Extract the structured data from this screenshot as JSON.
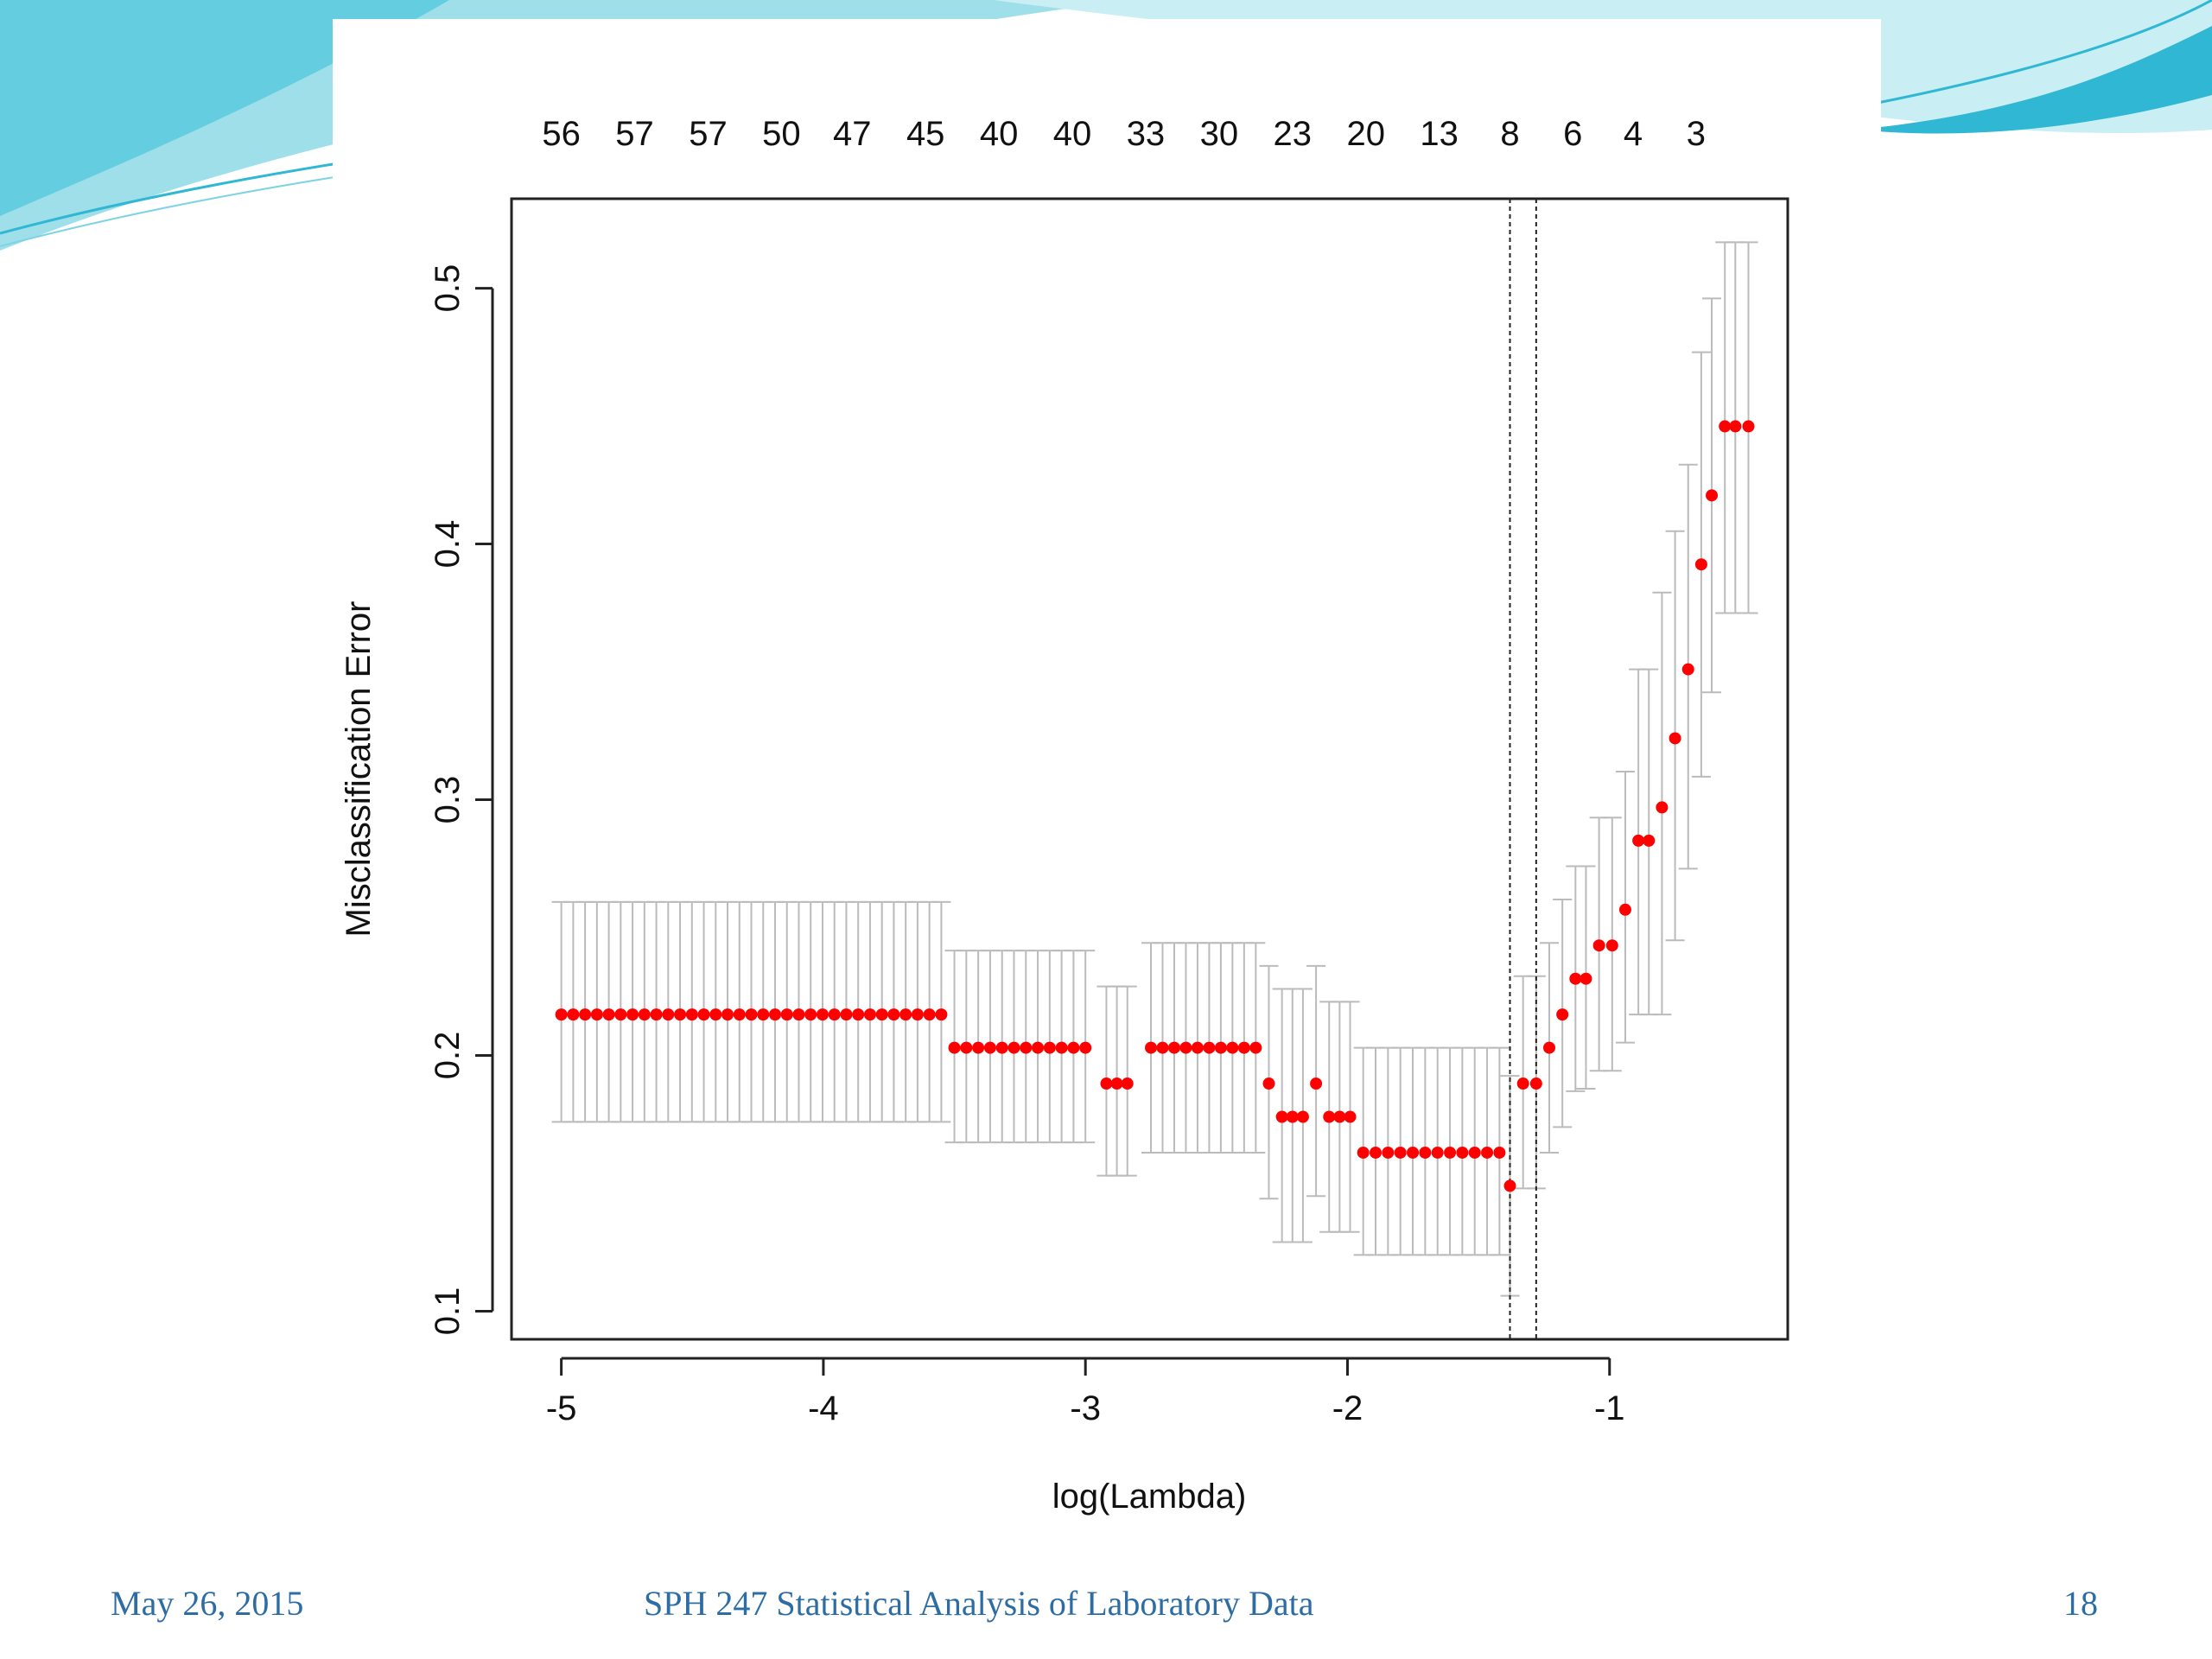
{
  "slide": {
    "footer_date": "May 26, 2015",
    "footer_title": "SPH 247 Statistical Analysis of Laboratory Data",
    "page_number": "18",
    "theme_colors": {
      "wave_light": "#aee6ee",
      "wave_mid": "#7fd3e4",
      "wave_dark": "#2fb7d4",
      "footer_text": "#2e6da4"
    }
  },
  "chart_data": {
    "type": "scatter",
    "title": "",
    "xlabel": "log(Lambda)",
    "ylabel": "Misclassification Error",
    "xlim": [
      -5.19,
      -0.32
    ],
    "ylim": [
      0.089,
      0.535
    ],
    "x_ticks": [
      -5,
      -4,
      -3,
      -2,
      -1
    ],
    "x_tick_labels": [
      "-5",
      "-4",
      "-3",
      "-2",
      "-1"
    ],
    "y_ticks": [
      0.1,
      0.2,
      0.3,
      0.4,
      0.5
    ],
    "y_tick_labels": [
      "0.1",
      "0.2",
      "0.3",
      "0.4",
      "0.5"
    ],
    "top_axis_labels": [
      {
        "x": -5.0,
        "label": "56"
      },
      {
        "x": -4.72,
        "label": "57"
      },
      {
        "x": -4.44,
        "label": "57"
      },
      {
        "x": -4.16,
        "label": "50"
      },
      {
        "x": -3.89,
        "label": "47"
      },
      {
        "x": -3.61,
        "label": "45"
      },
      {
        "x": -3.33,
        "label": "40"
      },
      {
        "x": -3.05,
        "label": "40"
      },
      {
        "x": -2.77,
        "label": "33"
      },
      {
        "x": -2.49,
        "label": "30"
      },
      {
        "x": -2.21,
        "label": "23"
      },
      {
        "x": -1.93,
        "label": "20"
      },
      {
        "x": -1.65,
        "label": "13"
      },
      {
        "x": -1.38,
        "label": "8"
      },
      {
        "x": -1.14,
        "label": "6"
      },
      {
        "x": -0.91,
        "label": "4"
      },
      {
        "x": -0.67,
        "label": "3"
      }
    ],
    "vlines": [
      -1.38,
      -1.28
    ],
    "point_color": "#ff0000",
    "errorbar_color": "#bbbbbb",
    "segments": [
      {
        "from": -5.0,
        "to": -3.55,
        "y": 0.216,
        "lo": 0.174,
        "hi": 0.26
      },
      {
        "from": -3.5,
        "to": -3.0,
        "y": 0.203,
        "lo": 0.166,
        "hi": 0.241
      },
      {
        "from": -2.92,
        "to": -2.84,
        "y": 0.189,
        "lo": 0.153,
        "hi": 0.227
      },
      {
        "from": -2.75,
        "to": -2.35,
        "y": 0.203,
        "lo": 0.162,
        "hi": 0.244
      },
      {
        "from": -2.3,
        "to": -2.3,
        "y": 0.189,
        "lo": 0.144,
        "hi": 0.235
      },
      {
        "from": -2.25,
        "to": -2.17,
        "y": 0.176,
        "lo": 0.127,
        "hi": 0.226
      },
      {
        "from": -2.12,
        "to": -2.12,
        "y": 0.189,
        "lo": 0.145,
        "hi": 0.235
      },
      {
        "from": -2.07,
        "to": -1.99,
        "y": 0.176,
        "lo": 0.131,
        "hi": 0.221
      },
      {
        "from": -1.94,
        "to": -1.42,
        "y": 0.162,
        "lo": 0.122,
        "hi": 0.203
      },
      {
        "from": -1.38,
        "to": -1.38,
        "y": 0.149,
        "lo": 0.106,
        "hi": 0.192
      },
      {
        "from": -1.33,
        "to": -1.28,
        "y": 0.189,
        "lo": 0.148,
        "hi": 0.231
      }
    ],
    "points": [
      {
        "x": -1.23,
        "y": 0.203,
        "lo": 0.162,
        "hi": 0.244
      },
      {
        "x": -1.18,
        "y": 0.216,
        "lo": 0.172,
        "hi": 0.261
      },
      {
        "x": -1.13,
        "y": 0.23,
        "lo": 0.186,
        "hi": 0.274
      },
      {
        "x": -1.09,
        "y": 0.23,
        "lo": 0.187,
        "hi": 0.274
      },
      {
        "x": -1.04,
        "y": 0.243,
        "lo": 0.194,
        "hi": 0.293
      },
      {
        "x": -0.99,
        "y": 0.243,
        "lo": 0.194,
        "hi": 0.293
      },
      {
        "x": -0.94,
        "y": 0.257,
        "lo": 0.205,
        "hi": 0.311
      },
      {
        "x": -0.89,
        "y": 0.284,
        "lo": 0.216,
        "hi": 0.351
      },
      {
        "x": -0.85,
        "y": 0.284,
        "lo": 0.216,
        "hi": 0.351
      },
      {
        "x": -0.8,
        "y": 0.297,
        "lo": 0.216,
        "hi": 0.381
      },
      {
        "x": -0.75,
        "y": 0.324,
        "lo": 0.245,
        "hi": 0.405
      },
      {
        "x": -0.7,
        "y": 0.351,
        "lo": 0.273,
        "hi": 0.431
      },
      {
        "x": -0.65,
        "y": 0.392,
        "lo": 0.309,
        "hi": 0.475
      },
      {
        "x": -0.61,
        "y": 0.419,
        "lo": 0.342,
        "hi": 0.496
      },
      {
        "x": -0.56,
        "y": 0.446,
        "lo": 0.373,
        "hi": 0.518
      },
      {
        "x": -0.52,
        "y": 0.446,
        "lo": 0.373,
        "hi": 0.518
      },
      {
        "x": -0.47,
        "y": 0.446,
        "lo": 0.373,
        "hi": 0.518
      }
    ]
  }
}
